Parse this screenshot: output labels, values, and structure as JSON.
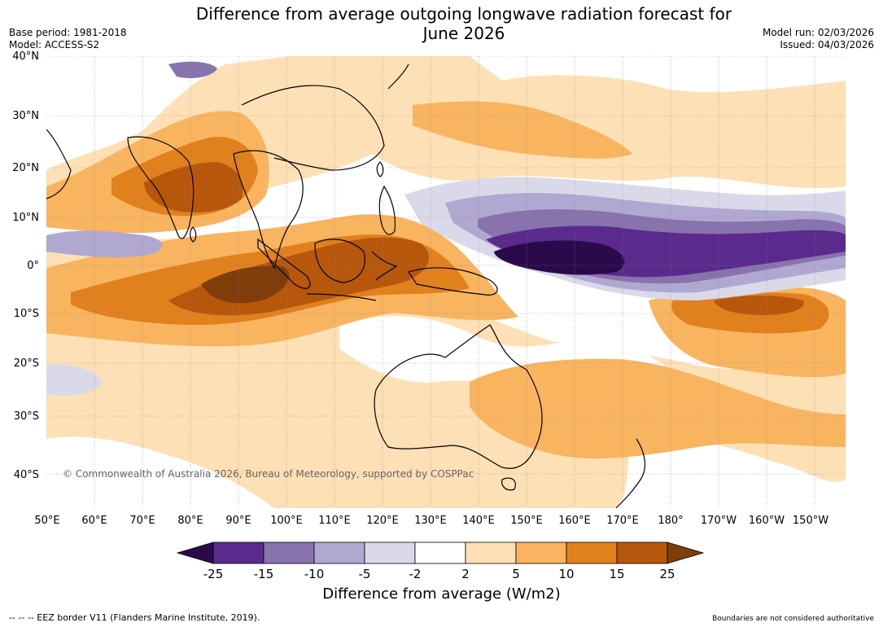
{
  "title_line1": "Difference from average outgoing longwave radiation forecast for",
  "title_line2": "June 2026",
  "meta_left": {
    "base_period": "Base period: 1981-2018",
    "model": "Model: ACCESS-S2"
  },
  "meta_right": {
    "model_run": "Model run: 02/03/2026",
    "issued": "Issued: 04/03/2026"
  },
  "copyright": "© Commonwealth of Australia 2026, Bureau of Meteorology, supported by COSPPac",
  "lat_labels": [
    "40°N",
    "30°N",
    "20°N",
    "10°N",
    "0°",
    "10°S",
    "20°S",
    "30°S",
    "40°S"
  ],
  "lon_labels": [
    "50°E",
    "60°E",
    "70°E",
    "80°E",
    "90°E",
    "100°E",
    "110°E",
    "120°E",
    "130°E",
    "140°E",
    "150°E",
    "160°E",
    "170°E",
    "180°",
    "170°W",
    "160°W",
    "150°W"
  ],
  "colorbar": {
    "ticks": [
      "-25",
      "-15",
      "-10",
      "-5",
      "-2",
      "2",
      "5",
      "10",
      "15",
      "25"
    ],
    "title": "Difference from average (W/m2)",
    "colors": [
      "#2a0a4a",
      "#5a2a8c",
      "#8873ad",
      "#b1a8d1",
      "#d9d9ea",
      "#ffffff",
      "#fde0b5",
      "#f9b45f",
      "#e0811e",
      "#b6570c",
      "#7e3d0b"
    ]
  },
  "footer_left": "--  --  -- EEZ border V11 (Flanders Marine Institute, 2019).",
  "footer_right": "Boundaries are not considered authoritative"
}
